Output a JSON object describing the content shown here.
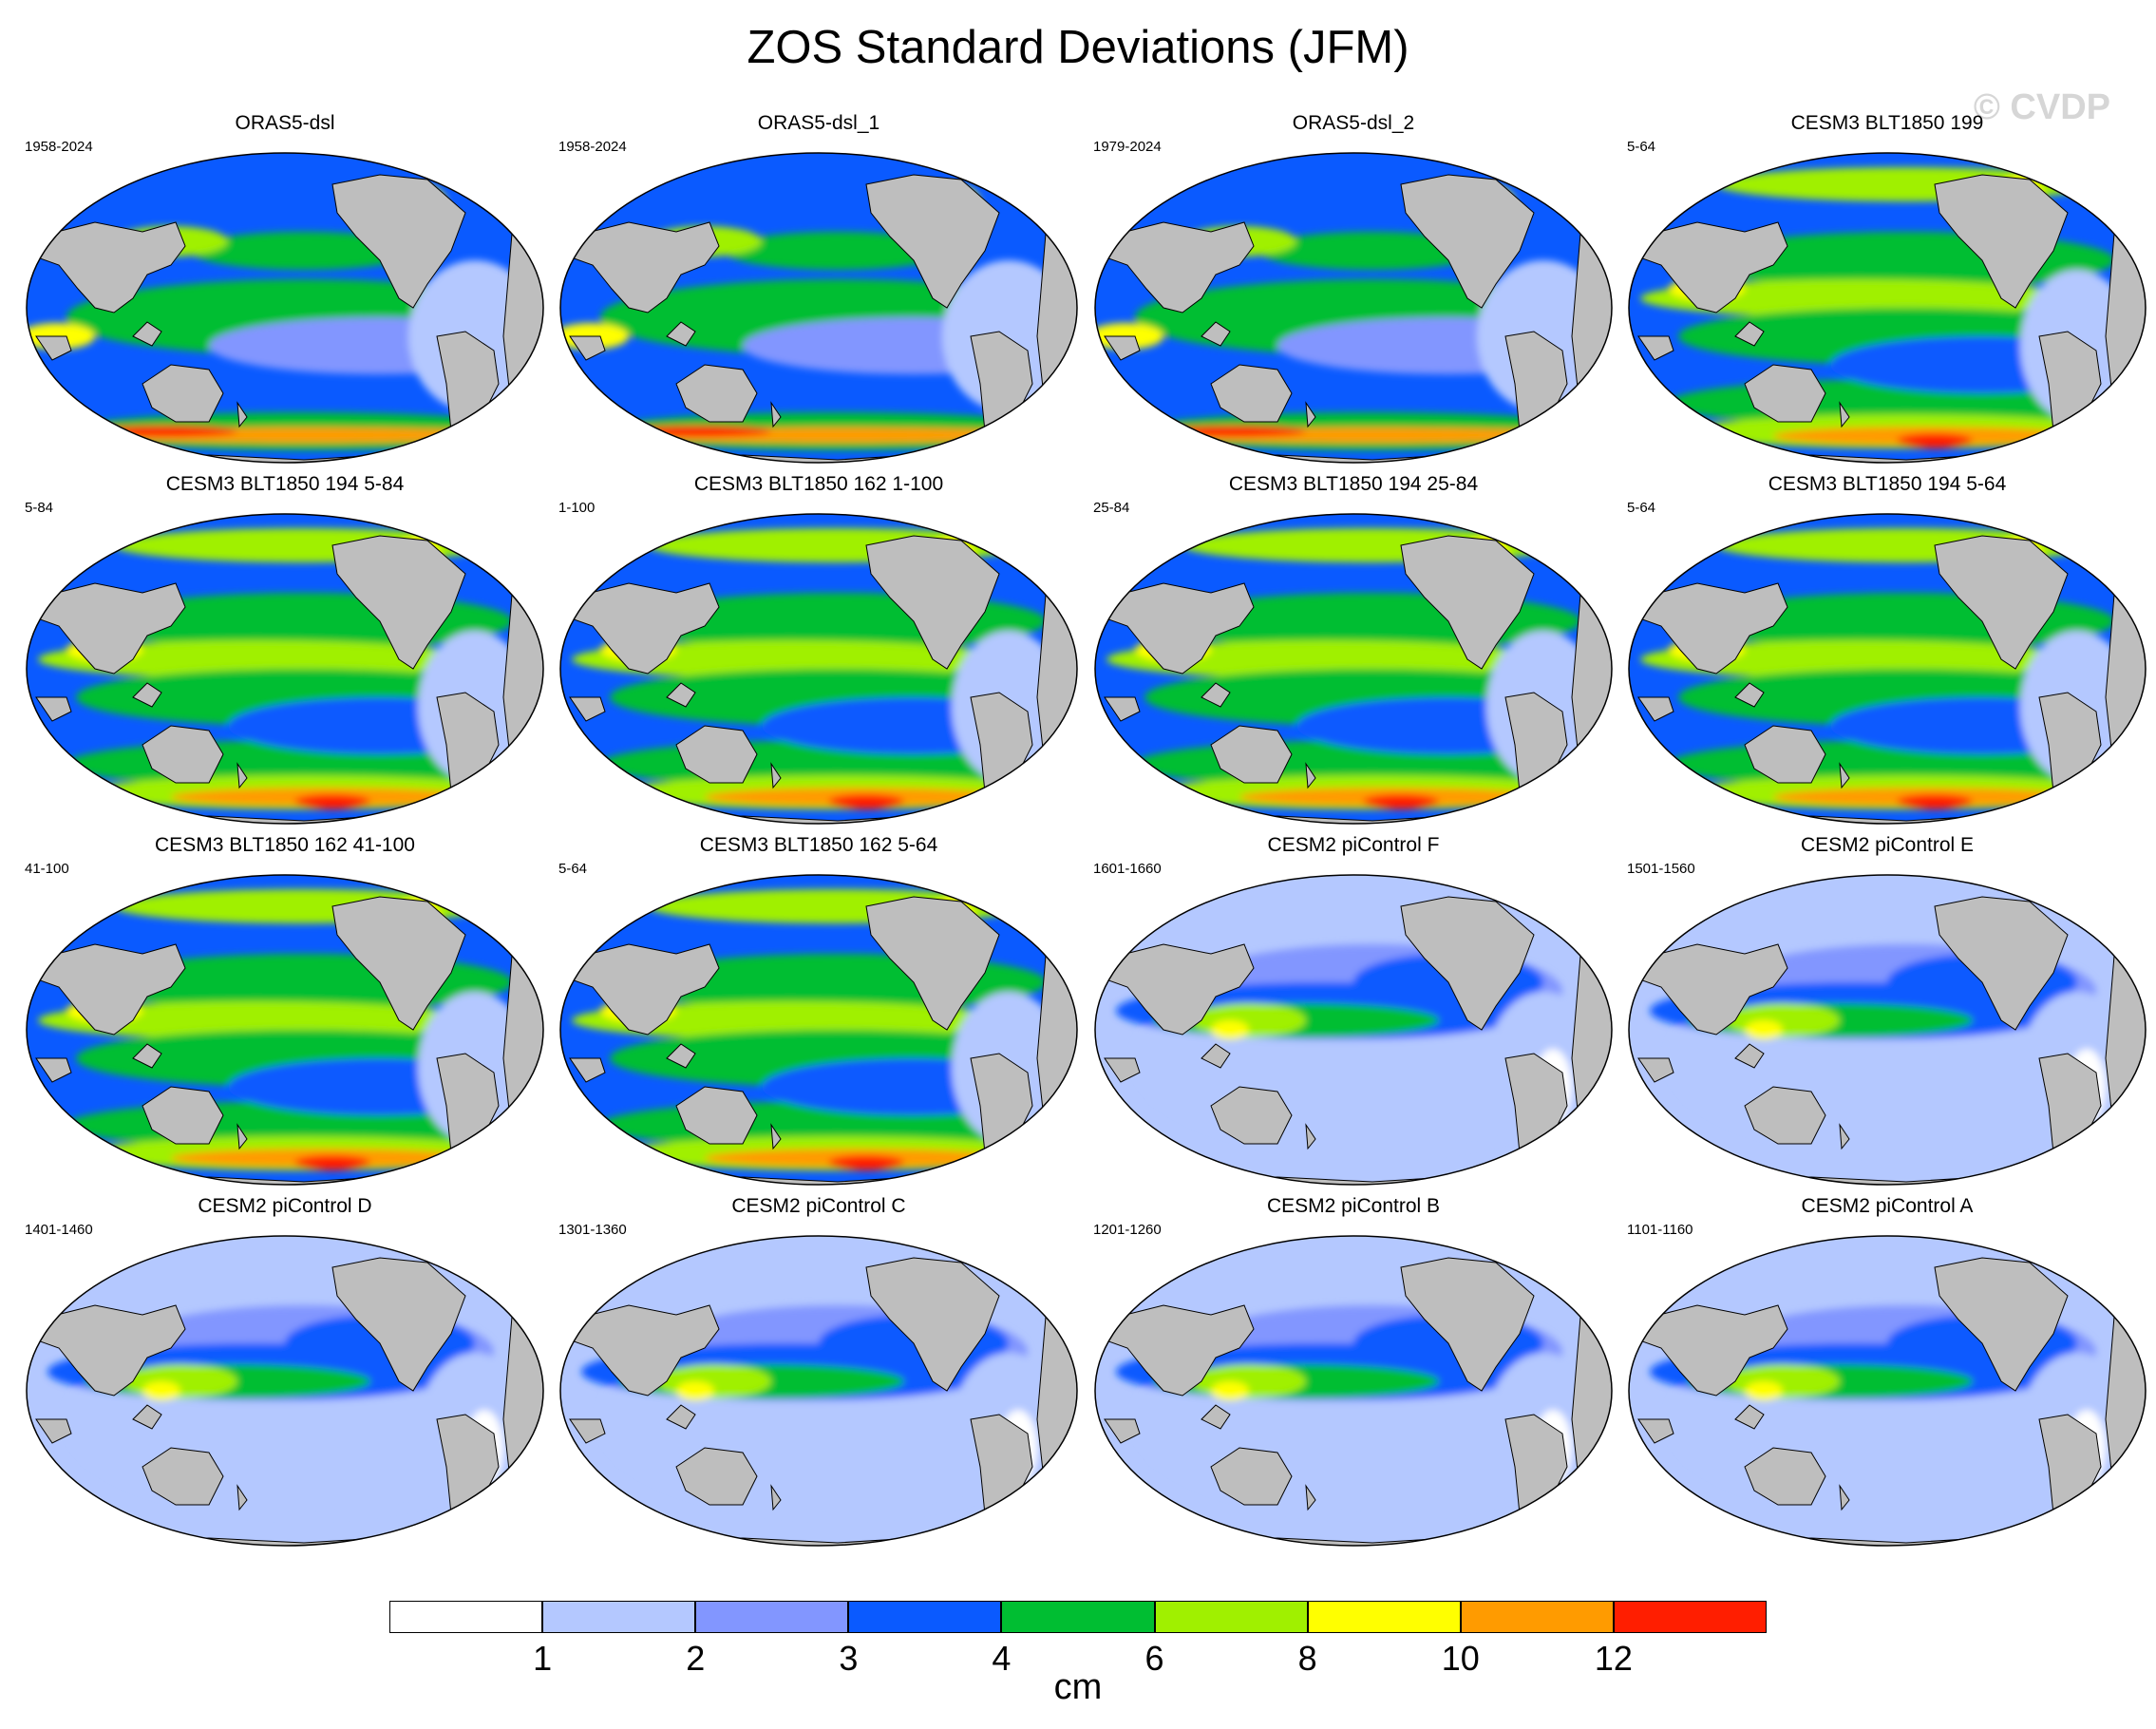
{
  "title": "ZOS Standard Deviations (JFM)",
  "watermark": "© CVDP",
  "panels": [
    {
      "title": "ORAS5-dsl",
      "years": "1958-2024",
      "style": "obs"
    },
    {
      "title": "ORAS5-dsl_1",
      "years": "1958-2024",
      "style": "obs"
    },
    {
      "title": "ORAS5-dsl_2",
      "years": "1979-2024",
      "style": "obs"
    },
    {
      "title": "CESM3 BLT1850 199",
      "years": "5-64",
      "style": "cesm3"
    },
    {
      "title": "CESM3 BLT1850 194 5-84",
      "years": "5-84",
      "style": "cesm3"
    },
    {
      "title": "CESM3 BLT1850 162 1-100",
      "years": "1-100",
      "style": "cesm3"
    },
    {
      "title": "CESM3 BLT1850 194 25-84",
      "years": "25-84",
      "style": "cesm3"
    },
    {
      "title": "CESM3 BLT1850 194 5-64",
      "years": "5-64",
      "style": "cesm3"
    },
    {
      "title": "CESM3 BLT1850 162 41-100",
      "years": "41-100",
      "style": "cesm3"
    },
    {
      "title": "CESM3 BLT1850 162 5-64",
      "years": "5-64",
      "style": "cesm3"
    },
    {
      "title": "CESM2 piControl F",
      "years": "1601-1660",
      "style": "cesm2"
    },
    {
      "title": "CESM2 piControl E",
      "years": "1501-1560",
      "style": "cesm2"
    },
    {
      "title": "CESM2 piControl D",
      "years": "1401-1460",
      "style": "cesm2"
    },
    {
      "title": "CESM2 piControl C",
      "years": "1301-1360",
      "style": "cesm2"
    },
    {
      "title": "CESM2 piControl B",
      "years": "1201-1260",
      "style": "cesm2"
    },
    {
      "title": "CESM2 piControl A",
      "years": "1101-1160",
      "style": "cesm2"
    }
  ],
  "colorbar": {
    "units": "cm",
    "labels": [
      "1",
      "2",
      "3",
      "4",
      "6",
      "8",
      "10",
      "12"
    ],
    "colors": [
      "#ffffff",
      "#b4c8ff",
      "#8296ff",
      "#0a5aff",
      "#00be32",
      "#a0f000",
      "#ffff00",
      "#ff9b00",
      "#ff1e00"
    ]
  },
  "land_color": "#bebebe"
}
